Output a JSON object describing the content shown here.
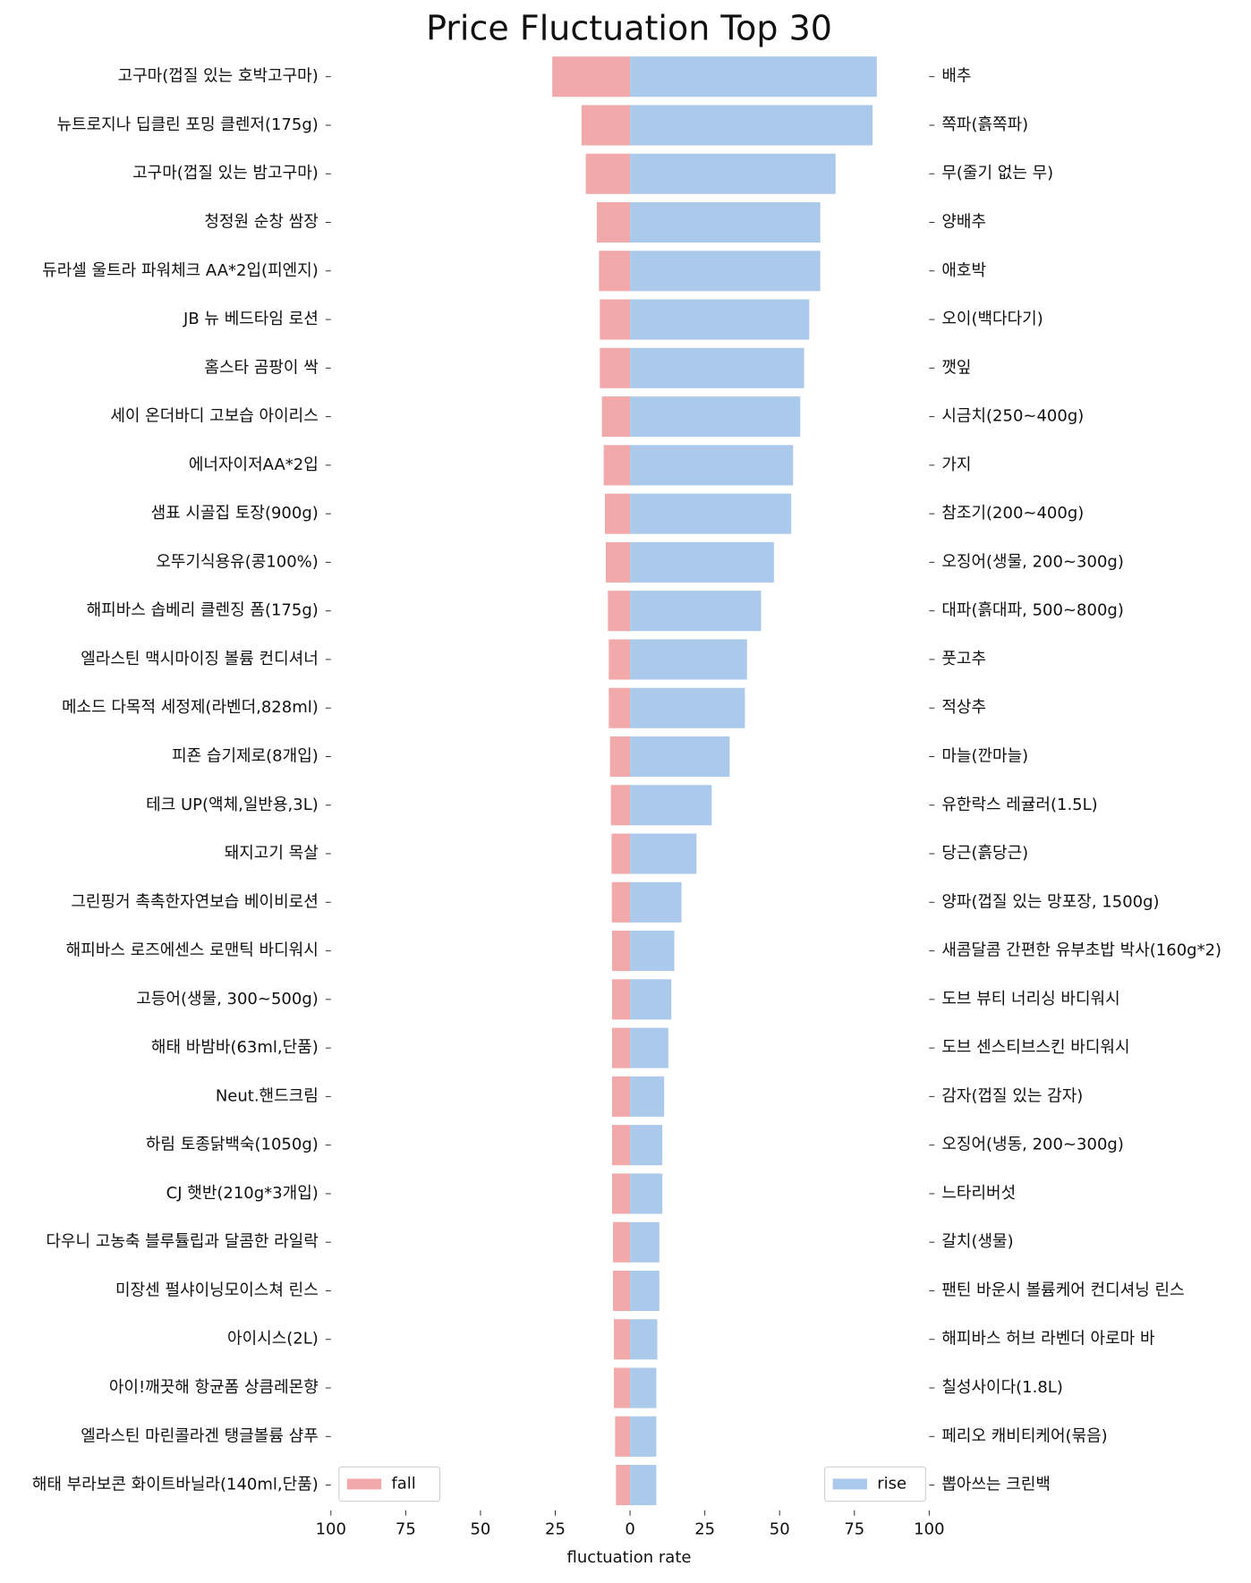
{
  "chart_data": {
    "type": "diverging-bar",
    "title": "Price Fluctuation Top 30",
    "xlabel": "fluctuation rate",
    "xlim": [
      -100,
      100
    ],
    "xticks": [
      {
        "value": -100,
        "label": "100"
      },
      {
        "value": -75,
        "label": "75"
      },
      {
        "value": -50,
        "label": "50"
      },
      {
        "value": -25,
        "label": "25"
      },
      0,
      25,
      50,
      75,
      100
    ],
    "grid": false,
    "series": [
      {
        "name": "fall",
        "color": "#f2a9a9",
        "legend_loc": "lower right",
        "side": "left",
        "categories": [
          "고구마(껍질 있는 호박고구마)",
          "뉴트로지나 딥클린 포밍 클렌저(175g)",
          "고구마(껍질 있는 밤고구마)",
          "청정원 순창 쌈장",
          "듀라셀 울트라 파워체크 AA*2입(피엔지)",
          "JB 뉴 베드타임 로션",
          "홈스타 곰팡이 싹",
          "세이 온더바디 고보습 아이리스",
          "에너자이저AA*2입",
          "샘표 시골집 토장(900g)",
          "오뚜기식용유(콩100%)",
          "해피바스 솝베리 클렌징 폼(175g)",
          "엘라스틴 맥시마이징 볼륨 컨디셔너",
          "메소드 다목적 세정제(라벤더,828ml)",
          "피죤 습기제로(8개입)",
          "테크 UP(액체,일반용,3L)",
          "돼지고기 목살",
          "그린핑거 촉촉한자연보습 베이비로션",
          "해피바스 로즈에센스 로맨틱 바디워시",
          "고등어(생물, 300~500g)",
          "해태 바밤바(63ml,단품)",
          "Neut.핸드크림",
          "하림 토종닭백숙(1050g)",
          "CJ 햇반(210g*3개입)",
          "다우니 고농축 블루튤립과 달콤한 라일락",
          "미장센 펄샤이닝모이스쳐 린스",
          "아이시스(2L)",
          "아이!깨끗해 항균폼 상큼레몬향",
          "엘라스틴 마린콜라겐 탱글볼륨 샴푸",
          "해태 부라보콘 화이트바닐라(140ml,단품)"
        ],
        "values": [
          -26,
          -16.2,
          -14.8,
          -11.1,
          -10.4,
          -10.1,
          -10.1,
          -9.4,
          -8.8,
          -8.4,
          -8.1,
          -7.4,
          -7.1,
          -7.1,
          -6.7,
          -6.4,
          -6.2,
          -6.1,
          -6,
          -6,
          -6,
          -6,
          -6,
          -6,
          -5.7,
          -5.7,
          -5.4,
          -5.4,
          -5,
          -4.7
        ]
      },
      {
        "name": "rise",
        "color": "#abc9ea",
        "legend_loc": "lower right",
        "side": "right",
        "categories": [
          "배추",
          "쪽파(흙쪽파)",
          "무(줄기 없는 무)",
          "양배추",
          "애호박",
          "오이(백다다기)",
          "깻잎",
          "시금치(250~400g)",
          "가지",
          "참조기(200~400g)",
          "오징어(생물, 200~300g)",
          "대파(흙대파, 500~800g)",
          "풋고추",
          "적상추",
          "마늘(깐마늘)",
          "유한락스 레귤러(1.5L)",
          "당근(흙당근)",
          "양파(껍질 있는 망포장, 1500g)",
          "새콤달콤 간편한 유부초밥 박사(160g*2)",
          "도브 뷰티 너리싱 바디워시",
          "도브 센스티브스킨 바디워시",
          "감자(껍질 있는 감자)",
          "오징어(냉동, 200~300g)",
          "느타리버섯",
          "갈치(생물)",
          "팬틴 바운시 볼륨케어 컨디셔닝 린스",
          "해피바스 허브 라벤더 아로마 바",
          "칠성사이다(1.8L)",
          "페리오 캐비티케어(묶음)",
          "뽑아쓰는 크린백"
        ],
        "values": [
          82.5,
          81.1,
          68.7,
          63.6,
          63.6,
          59.9,
          58.2,
          56.9,
          54.5,
          53.9,
          48.1,
          43.8,
          39.1,
          38.4,
          33.3,
          27.3,
          22.2,
          17.2,
          14.8,
          13.8,
          12.8,
          11.4,
          10.8,
          10.8,
          9.8,
          9.8,
          9.1,
          8.8,
          8.8,
          8.8
        ]
      }
    ]
  }
}
